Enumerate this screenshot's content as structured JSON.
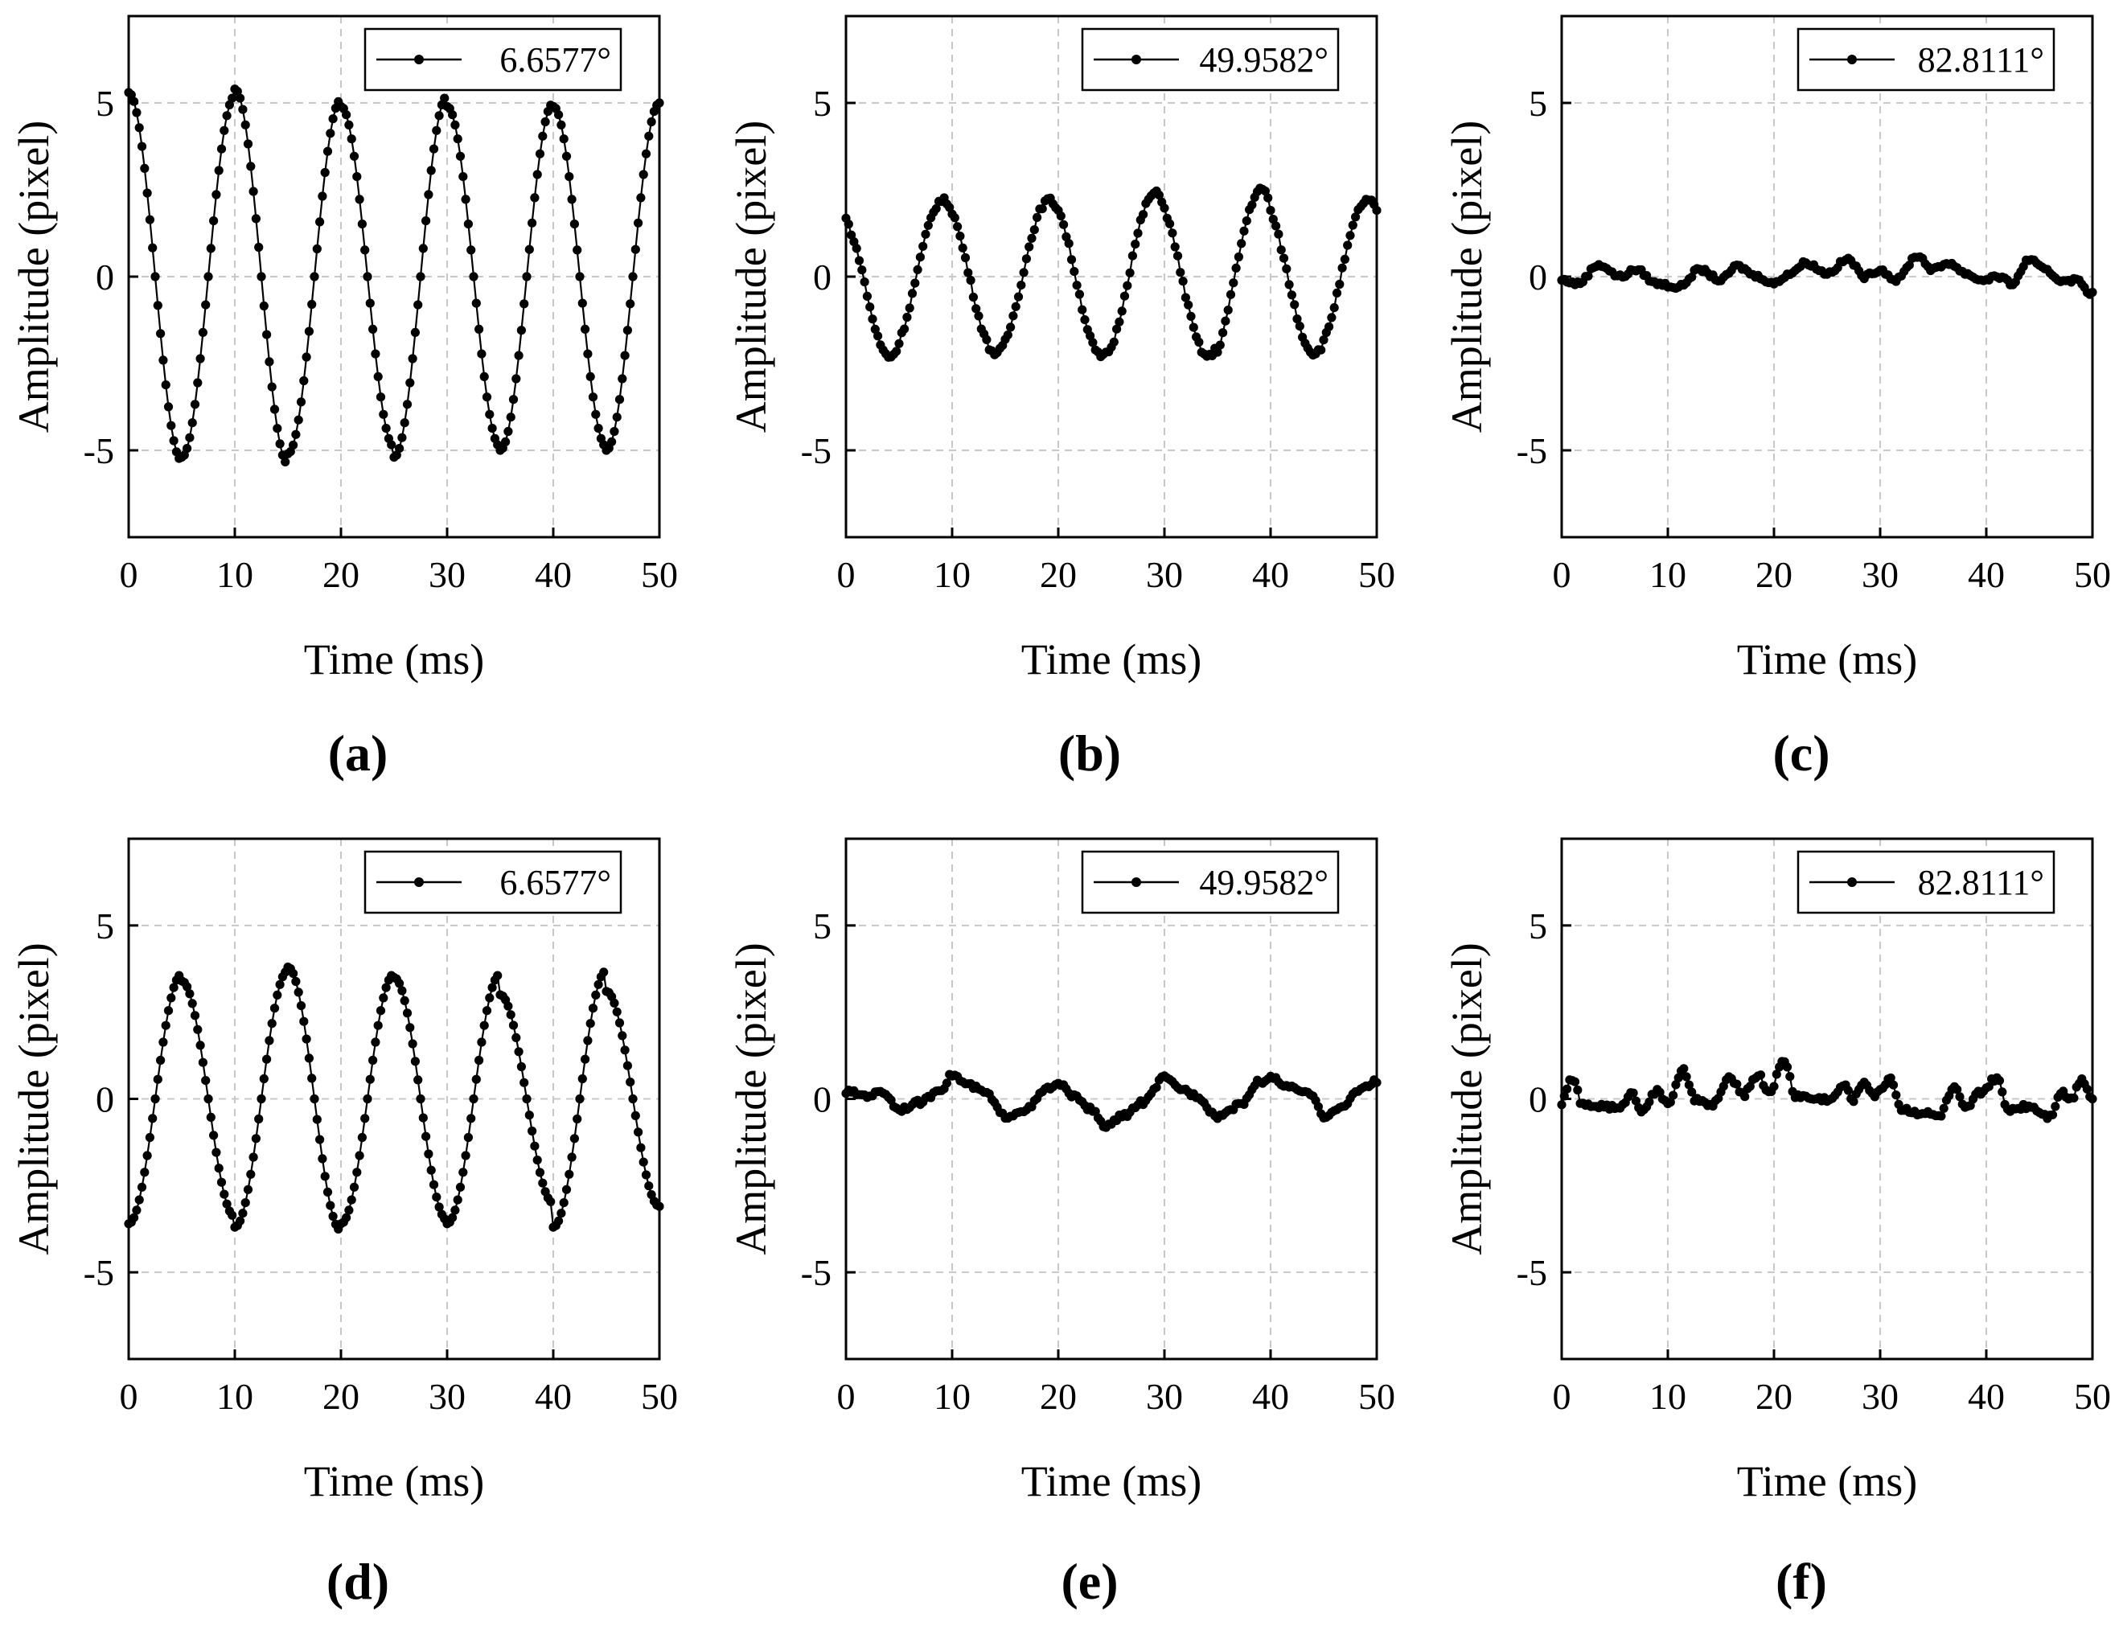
{
  "figure": {
    "panel_labels": [
      "(a)",
      "(b)",
      "(c)",
      "(d)",
      "(e)",
      "(f)"
    ]
  },
  "chart_data": [
    {
      "id": "a",
      "type": "line",
      "label": "(a)",
      "title": "",
      "xlabel": "Time (ms)",
      "ylabel": "Amplitude (pixel)",
      "xlim": [
        0,
        50
      ],
      "ylim": [
        -7.5,
        7.5
      ],
      "xticks": [
        0,
        10,
        20,
        30,
        40,
        50
      ],
      "yticks": [
        -5,
        0,
        5
      ],
      "legend": "top-right",
      "grid": true,
      "series": [
        {
          "name": "6.6577°",
          "period_ms": 10,
          "amplitudes": [
            5.3,
            5.2,
            5.4,
            5.1,
            4.9,
            5.2,
            4.9,
            5.0,
            4.9,
            5.0
          ],
          "phase_shape": "cos",
          "noise": 0
        }
      ]
    },
    {
      "id": "b",
      "type": "line",
      "label": "(b)",
      "title": "",
      "xlabel": "Time (ms)",
      "ylabel": "Amplitude (pixel)",
      "xlim": [
        0,
        50
      ],
      "ylim": [
        -7.5,
        7.5
      ],
      "xticks": [
        0,
        10,
        20,
        30,
        40,
        50
      ],
      "yticks": [
        -5,
        0,
        5
      ],
      "legend": "top-right",
      "grid": true,
      "series": [
        {
          "name": "49.9582°",
          "period_ms": 10,
          "amplitudes": [
            2.3,
            2.2,
            2.2,
            2.2,
            2.3,
            2.4,
            2.3,
            2.5,
            2.2,
            2.2
          ],
          "phase_shape": "cos_shift",
          "noise": 0.08
        }
      ]
    },
    {
      "id": "c",
      "type": "line",
      "label": "(c)",
      "title": "",
      "xlabel": "Time (ms)",
      "ylabel": "Amplitude (pixel)",
      "xlim": [
        0,
        50
      ],
      "ylim": [
        -7.5,
        7.5
      ],
      "xticks": [
        0,
        10,
        20,
        30,
        40,
        50
      ],
      "yticks": [
        -5,
        0,
        5
      ],
      "legend": "top-right",
      "grid": true,
      "series": [
        {
          "name": "82.8111°",
          "keypoints": [
            [
              0,
              -0.1
            ],
            [
              1.5,
              -0.2
            ],
            [
              3.5,
              0.35
            ],
            [
              5.5,
              0.0
            ],
            [
              7,
              0.2
            ],
            [
              9,
              -0.2
            ],
            [
              11,
              -0.3
            ],
            [
              13,
              0.2
            ],
            [
              15,
              -0.1
            ],
            [
              16.5,
              0.3
            ],
            [
              18.5,
              0.0
            ],
            [
              20,
              -0.2
            ],
            [
              21.5,
              0.1
            ],
            [
              23,
              0.4
            ],
            [
              25,
              0.1
            ],
            [
              27,
              0.5
            ],
            [
              28.5,
              0.0
            ],
            [
              30,
              0.2
            ],
            [
              31.5,
              -0.1
            ],
            [
              33.5,
              0.6
            ],
            [
              35,
              0.2
            ],
            [
              36.5,
              0.4
            ],
            [
              38,
              0.1
            ],
            [
              39.5,
              -0.1
            ],
            [
              41,
              0.0
            ],
            [
              42.5,
              -0.2
            ],
            [
              44,
              0.5
            ],
            [
              45.5,
              0.2
            ],
            [
              47,
              -0.1
            ],
            [
              48.5,
              -0.1
            ],
            [
              50,
              -0.5
            ]
          ],
          "noise": 0.06
        }
      ]
    },
    {
      "id": "d",
      "type": "line",
      "label": "(d)",
      "title": "",
      "xlabel": "Time (ms)",
      "ylabel": "Amplitude (pixel)",
      "xlim": [
        0,
        50
      ],
      "ylim": [
        -7.5,
        7.5
      ],
      "xticks": [
        0,
        10,
        20,
        30,
        40,
        50
      ],
      "yticks": [
        -5,
        0,
        5
      ],
      "legend": "top-right",
      "grid": true,
      "series": [
        {
          "name": "6.6577°",
          "period_ms": 10,
          "amplitudes": [
            3.6,
            3.4,
            3.7,
            3.8,
            3.6,
            3.5,
            3.6,
            3.0,
            3.7,
            3.1
          ],
          "phase_shape": "neg_cos",
          "noise": 0
        }
      ]
    },
    {
      "id": "e",
      "type": "line",
      "label": "(e)",
      "title": "",
      "xlabel": "Time (ms)",
      "ylabel": "Amplitude (pixel)",
      "xlim": [
        0,
        50
      ],
      "ylim": [
        -7.5,
        7.5
      ],
      "xticks": [
        0,
        10,
        20,
        30,
        40,
        50
      ],
      "yticks": [
        -5,
        0,
        5
      ],
      "legend": "top-right",
      "grid": true,
      "series": [
        {
          "name": "49.9582°",
          "keypoints": [
            [
              0,
              0.2
            ],
            [
              2,
              0.1
            ],
            [
              3.5,
              0.2
            ],
            [
              5,
              -0.3
            ],
            [
              7,
              -0.1
            ],
            [
              9,
              0.3
            ],
            [
              10,
              0.7
            ],
            [
              11.5,
              0.4
            ],
            [
              13,
              0.2
            ],
            [
              15,
              -0.5
            ],
            [
              17,
              -0.3
            ],
            [
              19,
              0.3
            ],
            [
              20,
              0.4
            ],
            [
              22,
              0.0
            ],
            [
              23,
              -0.3
            ],
            [
              24.5,
              -0.8
            ],
            [
              26,
              -0.5
            ],
            [
              28,
              -0.1
            ],
            [
              30,
              0.6
            ],
            [
              31.5,
              0.3
            ],
            [
              33,
              0.1
            ],
            [
              35,
              -0.5
            ],
            [
              37,
              -0.2
            ],
            [
              39,
              0.5
            ],
            [
              40,
              0.6
            ],
            [
              42,
              0.3
            ],
            [
              44,
              0.1
            ],
            [
              45,
              -0.5
            ],
            [
              46.5,
              -0.3
            ],
            [
              48.5,
              0.3
            ],
            [
              50,
              0.5
            ]
          ],
          "noise": 0.07
        }
      ]
    },
    {
      "id": "f",
      "type": "line",
      "label": "(f)",
      "title": "",
      "xlabel": "Time (ms)",
      "ylabel": "Amplitude (pixel)",
      "xlim": [
        0,
        50
      ],
      "ylim": [
        -7.5,
        7.5
      ],
      "xticks": [
        0,
        10,
        20,
        30,
        40,
        50
      ],
      "yticks": [
        -5,
        0,
        5
      ],
      "legend": "top-right",
      "grid": true,
      "series": [
        {
          "name": "82.8111°",
          "keypoints": [
            [
              0,
              -0.1
            ],
            [
              1,
              0.6
            ],
            [
              2,
              -0.2
            ],
            [
              4,
              -0.2
            ],
            [
              5.5,
              -0.3
            ],
            [
              6.5,
              0.2
            ],
            [
              7.5,
              -0.3
            ],
            [
              9,
              0.2
            ],
            [
              10,
              -0.1
            ],
            [
              11.5,
              0.8
            ],
            [
              12.5,
              0.0
            ],
            [
              14,
              -0.2
            ],
            [
              16,
              0.6
            ],
            [
              17,
              0.1
            ],
            [
              18.5,
              0.7
            ],
            [
              19.5,
              0.2
            ],
            [
              21,
              1.1
            ],
            [
              22,
              0.1
            ],
            [
              24,
              0.0
            ],
            [
              25.5,
              0.0
            ],
            [
              26.5,
              0.4
            ],
            [
              27.5,
              0.0
            ],
            [
              28.5,
              0.5
            ],
            [
              29.5,
              0.1
            ],
            [
              31,
              0.6
            ],
            [
              32,
              -0.3
            ],
            [
              34,
              -0.4
            ],
            [
              35.5,
              -0.5
            ],
            [
              37,
              0.3
            ],
            [
              38,
              -0.3
            ],
            [
              39.5,
              0.2
            ],
            [
              41,
              0.6
            ],
            [
              42,
              -0.3
            ],
            [
              44,
              -0.2
            ],
            [
              46,
              -0.5
            ],
            [
              47,
              0.2
            ],
            [
              48,
              0.0
            ],
            [
              49,
              0.6
            ],
            [
              50,
              0.0
            ]
          ],
          "noise": 0.08
        }
      ]
    }
  ]
}
